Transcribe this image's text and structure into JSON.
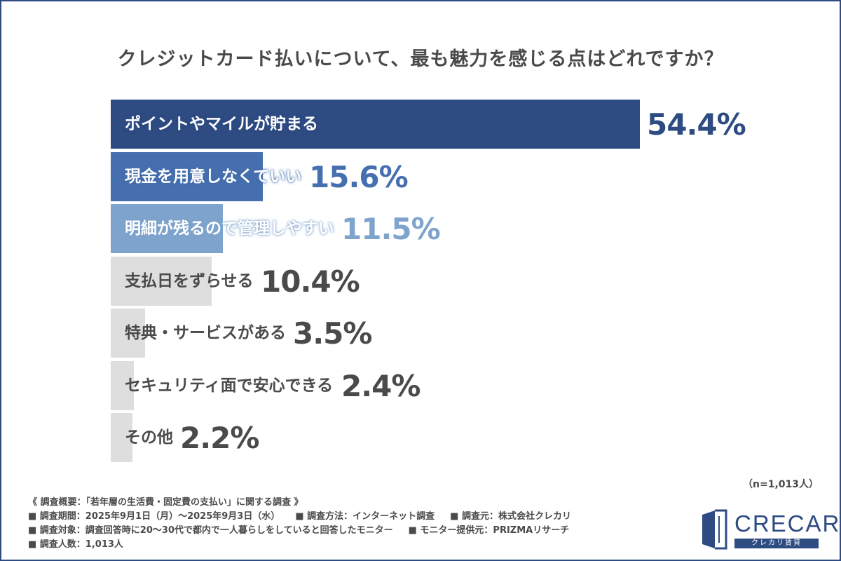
{
  "chart_data": {
    "type": "bar",
    "orientation": "horizontal",
    "title": "クレジットカード払いについて、最も魅力を感じる点はどれですか？",
    "categories": [
      "ポイントやマイルが貯まる",
      "現金を用意しなくていい",
      "明細が残るので管理しやすい",
      "支払日をずらせる",
      "特典・サービスがある",
      "セキュリティ面で安心できる",
      "その他"
    ],
    "values": [
      54.4,
      15.6,
      11.5,
      10.4,
      3.5,
      2.4,
      2.2
    ],
    "value_labels": [
      "54.4%",
      "15.6%",
      "11.5%",
      "10.4%",
      "3.5%",
      "2.4%",
      "2.2%"
    ],
    "colors": [
      "#2e4b82",
      "#456fae",
      "#7ea3cc",
      "#dedede",
      "#dedede",
      "#dedede",
      "#dedede"
    ],
    "value_colors": [
      "#2e4b82",
      "#456fae",
      "#7ea3cc",
      "#4a4a4a",
      "#4a4a4a",
      "#4a4a4a",
      "#4a4a4a"
    ],
    "label_colors": [
      "#ffffff",
      "#ffffff",
      "#ffffff",
      "#4a4a4a",
      "#4a4a4a",
      "#4a4a4a",
      "#4a4a4a"
    ],
    "xlim": [
      0,
      54.4
    ],
    "grid": false,
    "legend": "none"
  },
  "sample_size": "（n=1,013人）",
  "notes": {
    "overview": "《 調査概要：「若年層の生活費・固定費の支払い」に関する調査 》",
    "period": "■ 調査期間：2025年9月1日（月）～2025年9月3日（水）",
    "method": "■ 調査方法：インターネット調査",
    "organizer": "■ 調査元：株式会社クレカリ",
    "target": "■ 調査対象：調査回答時に20～30代で都内で一人暮らしをしていると回答したモニター",
    "provider": "■ モニター提供元：PRIZMAリサーチ",
    "count": "■ 調査人数：1,013人"
  },
  "logo": {
    "name": "CRECARI",
    "sub": "クレカリ賃貸",
    "icon": "door-icon"
  },
  "colors": {
    "frame": "#2e4b82",
    "text": "#4a4a4a"
  }
}
